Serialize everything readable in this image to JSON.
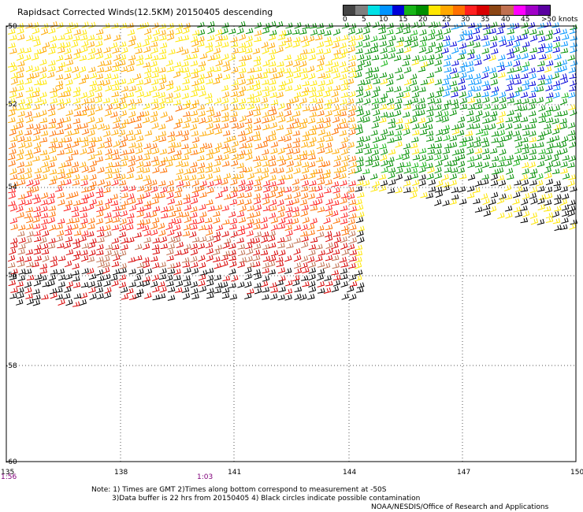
{
  "title": "Rapidsact Corrected Winds(12.5KM) 20150405 descending",
  "legend": {
    "colors": [
      "#444444",
      "#7f7f7f",
      "#00e1e6",
      "#0094ff",
      "#0000d8",
      "#17b517",
      "#008e00",
      "#ffe600",
      "#ffa800",
      "#ff7000",
      "#ff2020",
      "#d80000",
      "#8b4513",
      "#c07050",
      "#ff00ff",
      "#a000c8",
      "#5a00a0"
    ],
    "labels": [
      "0",
      "5",
      "10",
      "15",
      "20",
      "25",
      "30",
      "35",
      "40",
      "45",
      ">50 knots"
    ]
  },
  "axes": {
    "lat_labels": [
      "-50",
      "-52",
      "-54",
      "-56",
      "-58",
      "-60"
    ],
    "lon_labels": [
      "135",
      "138",
      "141",
      "144",
      "147",
      "150"
    ]
  },
  "time_labels": [
    "1:56",
    "1:03"
  ],
  "notes": [
    "Note: 1) Times are GMT 2)Times along bottom correspond to measurement at -50S",
    "3)Data buffer is 22 hrs from 20150405 4) Black circles indicate possible contamination",
    "NOAA/NESDIS/Office of Research and Applications"
  ]
}
